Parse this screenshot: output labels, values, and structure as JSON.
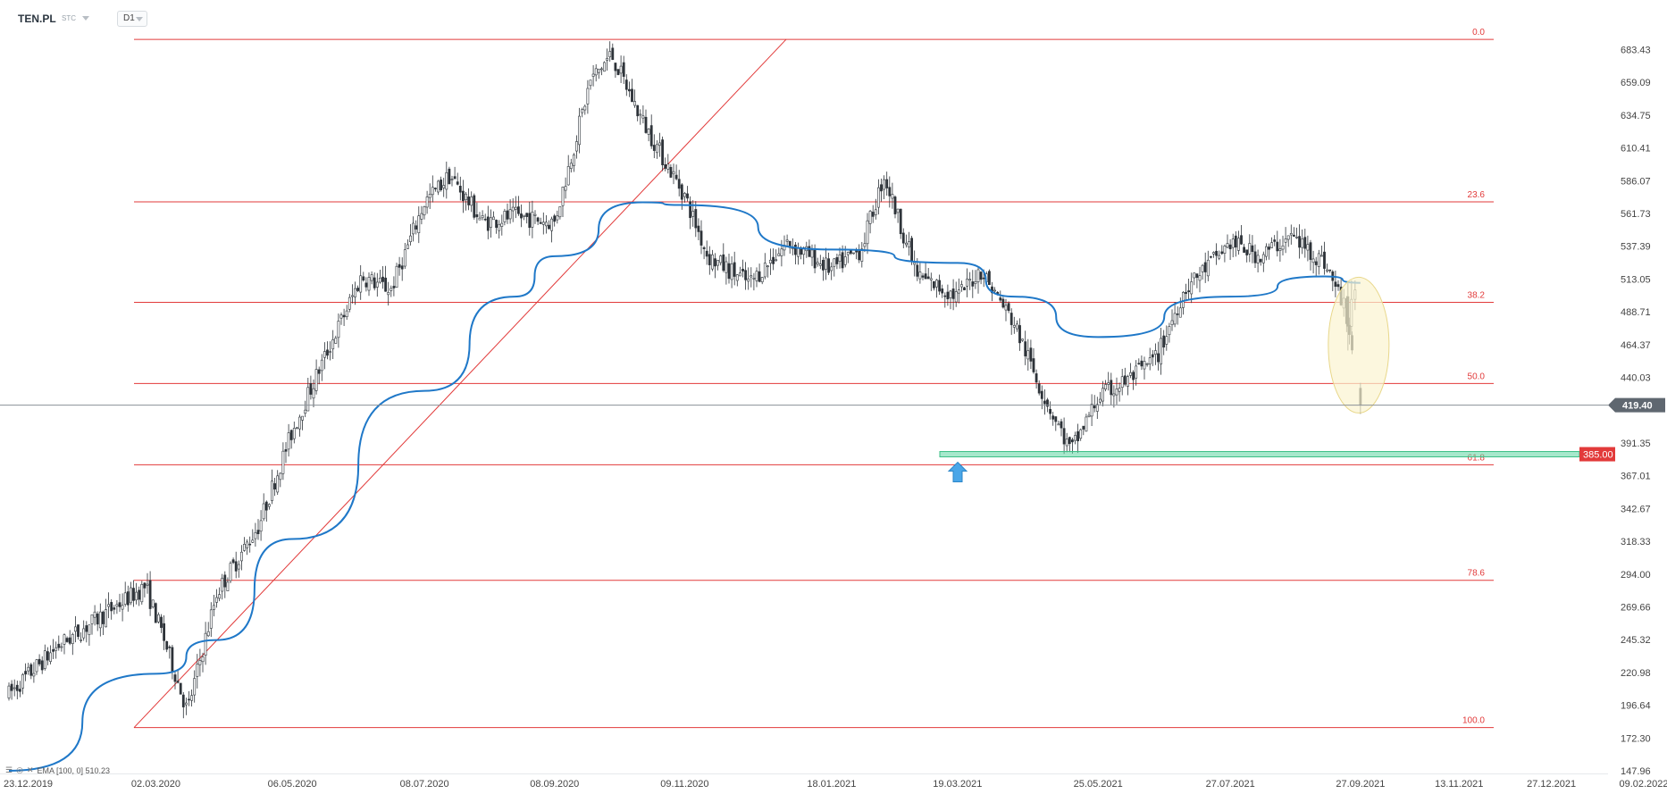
{
  "header": {
    "symbol": "TEN.PL",
    "symbol_sub": "STC",
    "timeframe": "D1"
  },
  "indicator": {
    "label": "EMA [100, 0] 510.23",
    "color": "#1f78c8"
  },
  "current_price_label": "419.40",
  "support_label": "385.00",
  "colors": {
    "fib_line": "#e23a3a",
    "price_line": "#8a9097",
    "price_tag_bg": "#5f6770",
    "support_tag_bg": "#e23a3a",
    "support_zone": "#5fd6a3",
    "ellipse_fill": "#fbf3d0",
    "ellipse_stroke": "#e8d78a",
    "arrow": "#4aa6e8",
    "candle": "#2d3339"
  },
  "chart_data": {
    "type": "candlestick",
    "title": "TEN.PL",
    "timeframe": "D1",
    "ylim": [
      147.96,
      700
    ],
    "y_ticks": [
      683.43,
      659.09,
      634.75,
      610.41,
      586.07,
      561.73,
      537.39,
      513.05,
      488.71,
      464.37,
      440.03,
      391.35,
      367.01,
      342.67,
      318.33,
      294.0,
      269.66,
      245.32,
      220.98,
      196.64,
      172.3,
      147.96
    ],
    "y_tick_labels": [
      "683.43",
      "659.09",
      "634.75",
      "610.41",
      "586.07",
      "561.73",
      "537.39",
      "513.05",
      "488.71",
      "464.37",
      "440.03",
      "391.35",
      "367.01",
      "342.67",
      "318.33",
      "294.00",
      "269.66",
      "245.32",
      "220.98",
      "196.64",
      "172.30",
      "147.96"
    ],
    "x_tick_labels": [
      "23.12.2019",
      "02.03.2020",
      "06.05.2020",
      "08.07.2020",
      "08.09.2020",
      "09.11.2020",
      "18.01.2021",
      "19.03.2021",
      "25.05.2021",
      "27.07.2021",
      "27.09.2021",
      "13.11.2021",
      "27.12.2021",
      "09.02.2022"
    ],
    "fibonacci": {
      "high": 691.0,
      "low": 180.0,
      "levels": [
        {
          "label": "0.0",
          "value": 691.0
        },
        {
          "label": "23.6",
          "value": 570.4
        },
        {
          "label": "38.2",
          "value": 495.8
        },
        {
          "label": "50.0",
          "value": 435.5
        },
        {
          "label": "61.8",
          "value": 375.2
        },
        {
          "label": "78.6",
          "value": 289.4
        },
        {
          "label": "100.0",
          "value": 180.0
        }
      ]
    },
    "current_price": 419.4,
    "support_level": 385.0,
    "ema_period": 100,
    "ema_last": 510.23,
    "price_path": [
      {
        "date": "23.12.2019",
        "close": 205
      },
      {
        "date": "15.01.2020",
        "close": 240
      },
      {
        "date": "10.02.2020",
        "close": 268
      },
      {
        "date": "26.02.2020",
        "close": 285
      },
      {
        "date": "05.03.2020",
        "close": 250
      },
      {
        "date": "17.03.2020",
        "close": 192
      },
      {
        "date": "31.03.2020",
        "close": 280
      },
      {
        "date": "20.04.2020",
        "close": 330
      },
      {
        "date": "06.05.2020",
        "close": 400
      },
      {
        "date": "20.05.2020",
        "close": 450
      },
      {
        "date": "08.06.2020",
        "close": 515
      },
      {
        "date": "22.06.2020",
        "close": 505
      },
      {
        "date": "08.07.2020",
        "close": 570
      },
      {
        "date": "20.07.2020",
        "close": 590
      },
      {
        "date": "05.08.2020",
        "close": 555
      },
      {
        "date": "20.08.2020",
        "close": 560
      },
      {
        "date": "08.09.2020",
        "close": 555
      },
      {
        "date": "25.09.2020",
        "close": 660
      },
      {
        "date": "05.10.2020",
        "close": 680
      },
      {
        "date": "20.10.2020",
        "close": 630
      },
      {
        "date": "09.11.2020",
        "close": 575
      },
      {
        "date": "20.11.2020",
        "close": 530
      },
      {
        "date": "10.12.2020",
        "close": 510
      },
      {
        "date": "28.12.2020",
        "close": 540
      },
      {
        "date": "18.01.2021",
        "close": 520
      },
      {
        "date": "01.02.2021",
        "close": 535
      },
      {
        "date": "12.02.2021",
        "close": 590
      },
      {
        "date": "28.02.2021",
        "close": 515
      },
      {
        "date": "19.03.2021",
        "close": 500
      },
      {
        "date": "30.03.2021",
        "close": 520
      },
      {
        "date": "15.04.2021",
        "close": 480
      },
      {
        "date": "28.04.2021",
        "close": 430
      },
      {
        "date": "12.05.2021",
        "close": 385
      },
      {
        "date": "25.05.2021",
        "close": 425
      },
      {
        "date": "10.06.2021",
        "close": 440
      },
      {
        "date": "22.06.2021",
        "close": 455
      },
      {
        "date": "05.07.2021",
        "close": 505
      },
      {
        "date": "27.07.2021",
        "close": 540
      },
      {
        "date": "10.08.2021",
        "close": 530
      },
      {
        "date": "25.08.2021",
        "close": 545
      },
      {
        "date": "10.09.2021",
        "close": 525
      },
      {
        "date": "20.09.2021",
        "close": 490
      },
      {
        "date": "27.09.2021",
        "close": 419.4
      }
    ],
    "ema_path": [
      {
        "date": "23.12.2019",
        "value": 147.96
      },
      {
        "date": "02.03.2020",
        "value": 220
      },
      {
        "date": "31.03.2020",
        "value": 245
      },
      {
        "date": "06.05.2020",
        "value": 320
      },
      {
        "date": "08.07.2020",
        "value": 430
      },
      {
        "date": "20.08.2020",
        "value": 500
      },
      {
        "date": "08.09.2020",
        "value": 530
      },
      {
        "date": "20.10.2020",
        "value": 570
      },
      {
        "date": "09.11.2020",
        "value": 568
      },
      {
        "date": "18.01.2021",
        "value": 535
      },
      {
        "date": "19.03.2021",
        "value": 525
      },
      {
        "date": "15.04.2021",
        "value": 500
      },
      {
        "date": "25.05.2021",
        "value": 470
      },
      {
        "date": "27.07.2021",
        "value": 500
      },
      {
        "date": "10.09.2021",
        "value": 515
      },
      {
        "date": "27.09.2021",
        "value": 510.23
      }
    ]
  }
}
